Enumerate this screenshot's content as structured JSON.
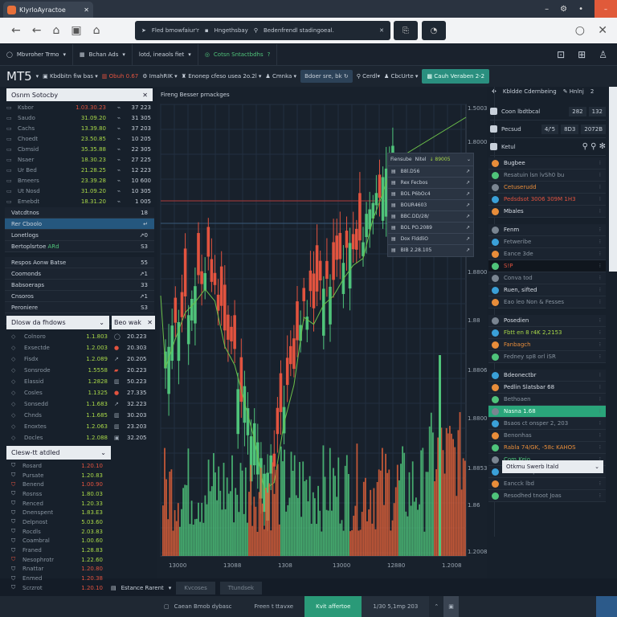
{
  "browser": {
    "tab_title": "KlyrloAyractoe",
    "omni_items": [
      "Fled bmowfaiur'r",
      "Hngethsbay",
      "Bedenfrendl stadingoeal."
    ]
  },
  "toolbar1": {
    "items": [
      "Mbvroher Trmo",
      "Bchan Ads",
      "lotd, ineaols fiet",
      "Cotsn Sntactbdhs"
    ]
  },
  "toolbar2": {
    "brand": "MT5",
    "items": [
      "Kbdbitn fiw bas",
      "Obuh 0.67",
      "ImahRIK",
      "Enonep cfeso usea 2o.2l",
      "Cmnka",
      "Bdoer sre, bk",
      "Cerdl",
      "CbcUrte",
      "Cauh Veraben 2-2"
    ]
  },
  "market_watch": {
    "title": "Osnm Sotocby",
    "rows": [
      {
        "sym": "Ksbor",
        "val": "1.03.30.23",
        "c": "r",
        "side": "37 223"
      },
      {
        "sym": "Saudo",
        "val": "31.09.20",
        "c": "g",
        "side": "31 305"
      },
      {
        "sym": "Cachs",
        "val": "13.39.80",
        "c": "g",
        "side": "37 203"
      },
      {
        "sym": "Choedt",
        "val": "23.50.85",
        "c": "g",
        "side": "10 205"
      },
      {
        "sym": "Cbmsid",
        "val": "35.35.88",
        "c": "g",
        "side": "22 305"
      },
      {
        "sym": "Nsaer",
        "val": "18.30.23",
        "c": "g",
        "side": "27 225"
      },
      {
        "sym": "Ur Bed",
        "val": "21.28.25",
        "c": "g",
        "side": "12 223"
      },
      {
        "sym": "Bmeers",
        "val": "23.39.28",
        "c": "g",
        "side": "10 600"
      },
      {
        "sym": "Ut Nosd",
        "val": "31.09.20",
        "c": "g",
        "side": "10 305"
      },
      {
        "sym": "Emebdt",
        "val": "18.31.20",
        "c": "g",
        "side": "1 005"
      }
    ]
  },
  "sections": [
    {
      "label": "Vatcdtnos",
      "v": "18"
    },
    {
      "label": "Rer Cboolo",
      "v": "↵"
    },
    {
      "label": "Lonetlogs",
      "v": "↗0"
    },
    {
      "label": "Bertoplsrtoe",
      "tag": "ARd",
      "v": "S3"
    },
    {
      "label": "Respos Aonw Batse",
      "v": "55"
    },
    {
      "label": "Coomonds",
      "v": "↗1"
    },
    {
      "label": "Babsoeraps",
      "v": "33"
    },
    {
      "label": "Cnsoros",
      "v": "↗1"
    },
    {
      "label": "Peroniere",
      "v": "S3"
    },
    {
      "label": "Elon Afterntsh 1/6tl",
      "v": "↗1"
    }
  ],
  "watch2": {
    "title": "Dlosw da fhdows",
    "rows": [
      [
        "Colnoro",
        "1.1.803"
      ],
      [
        "Exsectde",
        "1.2.003"
      ],
      [
        "Fisdx",
        "1.2.089"
      ],
      [
        "Sonsrode",
        "1.5558"
      ],
      [
        "Elassid",
        "1.2828"
      ],
      [
        "Cosles",
        "1.1325"
      ],
      [
        "Sonsedd",
        "1.1.683"
      ],
      [
        "Chnds",
        "1.1.685"
      ],
      [
        "Enoxtes",
        "1.2.063"
      ],
      [
        "Docles",
        "1.2.088"
      ]
    ]
  },
  "mini": {
    "title": "Beo wak",
    "rows": [
      "20.223",
      "20.303",
      "20.205",
      "20.223",
      "50.223",
      "27.335",
      "32.223",
      "30.203",
      "23.203",
      "32.205"
    ]
  },
  "watch3": {
    "title": "Clesw-tt atdled",
    "rows": [
      [
        "Rosard",
        "1.20.10",
        "r"
      ],
      [
        "Pursate",
        "1.20.83",
        "g"
      ],
      [
        "Benend",
        "1.00.90",
        "r"
      ],
      [
        "Rosnss",
        "1.80.03",
        "g"
      ],
      [
        "Renced",
        "1.20.33",
        "g"
      ],
      [
        "Dnenspent",
        "1.83.E3",
        "g"
      ],
      [
        "Delpnost",
        "5.03.60",
        "g"
      ],
      [
        "Rocdls",
        "2.03.83",
        "g"
      ],
      [
        "Coambral",
        "1.00.60",
        "g"
      ],
      [
        "Franed",
        "1.28.83",
        "g"
      ],
      [
        "Nesophrotr",
        "1.22.60",
        "g"
      ],
      [
        "Rnattar",
        "1.20.80",
        "r"
      ],
      [
        "Enmed",
        "1.20.38",
        "r"
      ],
      [
        "Scrzrot",
        "1.20.10",
        "r"
      ]
    ]
  },
  "chart": {
    "title": "Fireng Besser prnackges",
    "y_labels": [
      "1.50030",
      "1.8000",
      "1.8800",
      "1.88",
      "1.8806",
      "1.8800",
      "1.8853",
      "1.86",
      "1.2008"
    ],
    "x_labels": [
      "13000",
      "13088",
      "1308",
      "13000",
      "12880",
      "1.2008"
    ],
    "popup": {
      "title": "Fiensube",
      "sub": "Nitel",
      "val": "↓ 89005",
      "items": [
        "B8l.D56",
        "Rex Fecbos",
        "BOL P6bOc4",
        "BOUR4603",
        "BBC.DD/28/",
        "BOL PO.2089",
        "Dox FlddliO",
        "BIB 2.28.105"
      ]
    }
  },
  "right": {
    "top": [
      "Kbldde Cdernbeing",
      "Hnlnj",
      "2"
    ],
    "head": [
      {
        "t": "Coon lbdtbcal",
        "v": [
          "282",
          "132"
        ]
      },
      {
        "t": "Pecsud",
        "v": [
          "4/'5",
          "8D3",
          "2072B"
        ]
      },
      {
        "t": "Ketul",
        "v": []
      }
    ],
    "items": [
      {
        "t": "Bugbee",
        "c": ""
      },
      {
        "t": "Resatuin lsn lvSh0 bu",
        "c": "dim"
      },
      {
        "t": "Cetuserudd",
        "c": "o"
      },
      {
        "t": "Pedsdsot 3006 309M 1H3",
        "c": "r"
      },
      {
        "t": "Mbales",
        "c": ""
      },
      {
        "sp": 1
      },
      {
        "t": "Fenm",
        "c": ""
      },
      {
        "t": "Fetweribe",
        "c": "dim"
      },
      {
        "t": "Eance 3de",
        "c": "dim"
      },
      {
        "t": "S!P",
        "c": "r",
        "dark": 1
      },
      {
        "t": "Conva tod",
        "c": "dim"
      },
      {
        "t": "Ruen, sifted",
        "c": ""
      },
      {
        "t": "Eao leo Non & Fesses",
        "c": "dim"
      },
      {
        "sp": 1
      },
      {
        "t": "Posedien",
        "c": ""
      },
      {
        "t": "Fbtt en   8 r4K  2,2153",
        "c": "g"
      },
      {
        "t": "Fanbagch",
        "c": "o"
      },
      {
        "t": "Fedney sp8 orl iSR",
        "c": "dim"
      },
      {
        "sp": 1
      },
      {
        "t": "Bdeonectbr",
        "c": ""
      },
      {
        "t": "Pedlin Slatsbar 68",
        "c": ""
      },
      {
        "t": "Bethoaen",
        "c": "dim"
      },
      {
        "t": "Nasna 1.68",
        "c": "sel"
      },
      {
        "t": "Bsaos ct onsper 2, 203",
        "c": "dim"
      },
      {
        "t": "Benonhas",
        "c": "dim"
      },
      {
        "t": "Rabla 74/GK, -58c KAHOS",
        "c": "o"
      },
      {
        "t": "Com Keio",
        "c": "gr"
      },
      {
        "t": "Fiiator Kocp",
        "c": "dim"
      },
      {
        "t": "Eancck lbd",
        "c": "dim"
      },
      {
        "t": "Resodhed tnoot Joas",
        "c": "dim"
      }
    ],
    "select": "Otkmu Swerb ltald"
  },
  "chart_tabs": {
    "label": "Estance Rarent",
    "tabs": [
      "Kvcoses",
      "Ttundsek"
    ]
  },
  "bottom": {
    "items": [
      "Caean Bmob dybasc",
      "Freen t ttavxe",
      "Kvit affertoe",
      "1/30 5,1mp 203"
    ]
  },
  "colors": {
    "up": "#4fc37a",
    "down": "#e2533f",
    "accent": "#2a8f7f"
  }
}
